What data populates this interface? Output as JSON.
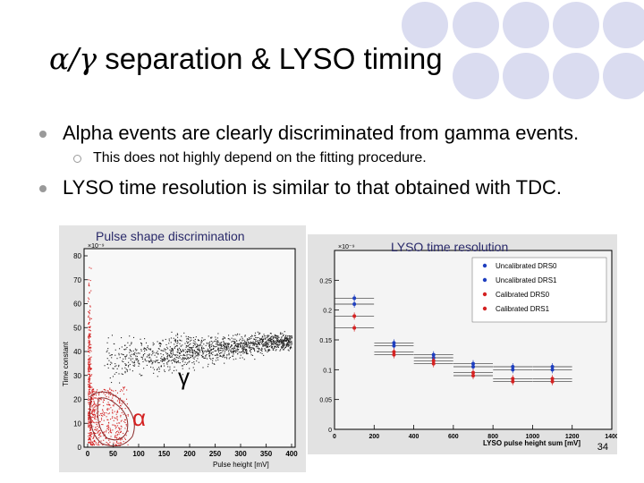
{
  "title": {
    "greek": "α/γ",
    "text": " separation & LYSO timing"
  },
  "bullets": [
    {
      "text": "Alpha events are clearly discriminated from gamma events."
    },
    {
      "text": "LYSO time resolution is similar to that obtained with TDC."
    }
  ],
  "sub_bullets": [
    {
      "text": "This does not highly depend on the fitting procedure."
    }
  ],
  "left_plot": {
    "label": "Pulse shape discrimination",
    "ylabel": "Time constant",
    "xlabel": "Pulse height [mV]",
    "y_multiplier": "×10⁻⁹",
    "y_ticks": [
      "80",
      "70",
      "60",
      "50",
      "40",
      "30",
      "20",
      "10",
      "0"
    ],
    "x_ticks": [
      "0",
      "50",
      "100",
      "150",
      "200",
      "250",
      "300",
      "350",
      "400"
    ],
    "alpha_label": "α",
    "gamma_label": "γ"
  },
  "right_plot": {
    "label": "LYSO time resolution",
    "y_multiplier": "×10⁻⁹",
    "y_ticks": [
      "0.25",
      "0.2",
      "0.15",
      "0.1",
      "0.05",
      "0"
    ],
    "x_ticks": [
      "0",
      "200",
      "400",
      "600",
      "800",
      "1000",
      "1200",
      "1400"
    ],
    "xlabel": "LYSO pulse height sum [mV]",
    "legend": [
      {
        "name": "Uncalibrated DRS0",
        "color": "#1f3fbf"
      },
      {
        "name": "Uncalibrated DRS1",
        "color": "#1f3fbf"
      },
      {
        "name": "Calibrated DRS0",
        "color": "#d42222"
      },
      {
        "name": "Calibrated DRS1",
        "color": "#d42222"
      }
    ]
  },
  "chart_data": {
    "type": "scatter",
    "xlabel": "LYSO pulse height sum [mV]",
    "xlim": [
      0,
      1400
    ],
    "ylim": [
      0,
      0.3
    ],
    "series": [
      {
        "name": "Uncalibrated DRS0",
        "x": [
          100,
          300,
          500,
          700,
          900,
          1100
        ],
        "y": [
          0.22,
          0.145,
          0.125,
          0.11,
          0.105,
          0.105
        ]
      },
      {
        "name": "Uncalibrated DRS1",
        "x": [
          100,
          300,
          500,
          700,
          900,
          1100
        ],
        "y": [
          0.21,
          0.14,
          0.12,
          0.105,
          0.1,
          0.1
        ]
      },
      {
        "name": "Calibrated DRS0",
        "x": [
          100,
          300,
          500,
          700,
          900,
          1100
        ],
        "y": [
          0.19,
          0.13,
          0.115,
          0.095,
          0.085,
          0.085
        ]
      },
      {
        "name": "Calibrated DRS1",
        "x": [
          100,
          300,
          500,
          700,
          900,
          1100
        ],
        "y": [
          0.17,
          0.125,
          0.11,
          0.09,
          0.08,
          0.08
        ]
      }
    ]
  },
  "page_number": "34",
  "colors": {
    "deco_circle": "#dadcf0",
    "alpha_points": "#d42222",
    "gamma_points": "#222222"
  }
}
